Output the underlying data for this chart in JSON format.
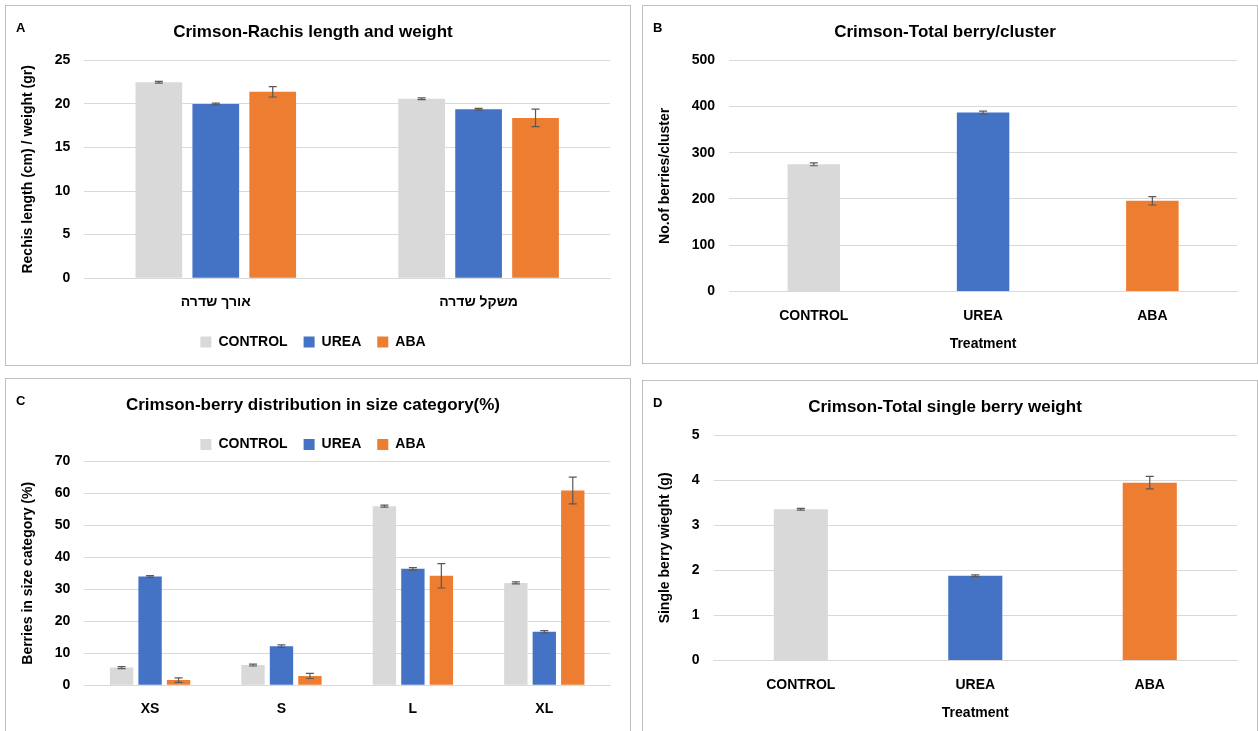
{
  "chart_data": [
    {
      "type": "bar",
      "title": "Crimson-Rachis length and weight",
      "ylabel": "Rechis length (cm) / weight (gr)",
      "annotations": [
        "A"
      ],
      "categories": [
        "אורך שדרה",
        "משקל שדרה"
      ],
      "series": [
        {
          "name": "CONTROL",
          "color": "#d9d9d9",
          "values": [
            22.5,
            20.6
          ],
          "errors": [
            0.1,
            0.1
          ]
        },
        {
          "name": "UREA",
          "color": "#4472c4",
          "values": [
            20.0,
            19.4
          ],
          "errors": [
            0.1,
            0.1
          ]
        },
        {
          "name": "ABA",
          "color": "#ed7d31",
          "values": [
            21.4,
            18.4
          ],
          "errors": [
            0.6,
            1.0
          ]
        }
      ],
      "ylim": [
        0,
        25
      ],
      "yticks": [
        0,
        5,
        10,
        15,
        20,
        25
      ],
      "grid": "y",
      "legend": "bottom"
    },
    {
      "type": "bar",
      "title": "Crimson-Total berry/cluster",
      "xlabel": "Treatment",
      "ylabel": "No.of berries/cluster",
      "annotations": [
        "B"
      ],
      "categories": [
        "CONTROL",
        "UREA",
        "ABA"
      ],
      "values": [
        275,
        387,
        196
      ],
      "colors": [
        "#d9d9d9",
        "#4472c4",
        "#ed7d31"
      ],
      "errors": [
        3,
        3,
        9
      ],
      "ylim": [
        0,
        500
      ],
      "yticks": [
        0,
        100,
        200,
        300,
        400,
        500
      ],
      "grid": "y"
    },
    {
      "type": "bar",
      "title": "Crimson-berry distribution in size category(%)",
      "ylabel": "Berries in size category (%)",
      "annotations": [
        "C"
      ],
      "categories": [
        "XS",
        "S",
        "L",
        "XL"
      ],
      "series": [
        {
          "name": "CONTROL",
          "color": "#d9d9d9",
          "values": [
            5.5,
            6.3,
            56,
            32
          ],
          "errors": [
            0.3,
            0.3,
            0.3,
            0.3
          ]
        },
        {
          "name": "UREA",
          "color": "#4472c4",
          "values": [
            34,
            12.2,
            36.4,
            16.7
          ],
          "errors": [
            0.3,
            0.4,
            0.4,
            0.4
          ]
        },
        {
          "name": "ABA",
          "color": "#ed7d31",
          "values": [
            1.6,
            2.9,
            34.2,
            60.9
          ],
          "errors": [
            0.7,
            0.8,
            3.8,
            4.2
          ]
        }
      ],
      "ylim": [
        0,
        70
      ],
      "yticks": [
        0,
        10,
        20,
        30,
        40,
        50,
        60,
        70
      ],
      "grid": "y",
      "legend": "top"
    },
    {
      "type": "bar",
      "title": "Crimson-Total single berry weight",
      "xlabel": "Treatment",
      "ylabel": "Single berry wieght (g)",
      "annotations": [
        "D"
      ],
      "categories": [
        "CONTROL",
        "UREA",
        "ABA"
      ],
      "values": [
        3.36,
        1.88,
        3.95
      ],
      "colors": [
        "#d9d9d9",
        "#4472c4",
        "#ed7d31"
      ],
      "errors": [
        0.02,
        0.02,
        0.14
      ],
      "ylim": [
        0,
        5
      ],
      "yticks": [
        0,
        1,
        2,
        3,
        4,
        5
      ],
      "grid": "y"
    }
  ]
}
